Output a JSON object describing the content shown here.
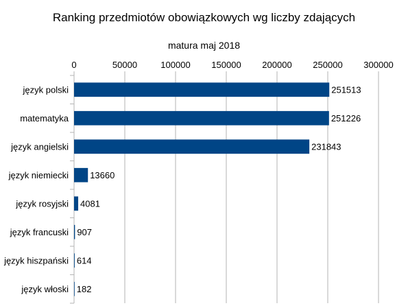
{
  "chart_data": {
    "type": "bar",
    "orientation": "horizontal",
    "title": "Ranking przedmiotów obowiązkowych wg liczby zdających",
    "subtitle": "matura maj 2018",
    "xlabel": "",
    "ylabel": "",
    "xlim": [
      0,
      300000
    ],
    "x_ticks": [
      "0",
      "50000",
      "100000",
      "150000",
      "200000",
      "250000",
      "300000"
    ],
    "x_axis_position": "top",
    "grid": true,
    "categories": [
      "język polski",
      "matematyka",
      "język angielski",
      "język niemiecki",
      "język rosyjski",
      "język francuski",
      "język hiszpański",
      "język włoski"
    ],
    "values": [
      251513,
      251226,
      231843,
      13660,
      4081,
      907,
      614,
      182
    ],
    "data_labels": [
      "251513",
      "251226",
      "231843",
      "13660",
      "4081",
      "907",
      "614",
      "182"
    ],
    "bar_color": "#004586",
    "grid_color": "#b3b3b3",
    "axis_color": "#b3b3b3"
  }
}
